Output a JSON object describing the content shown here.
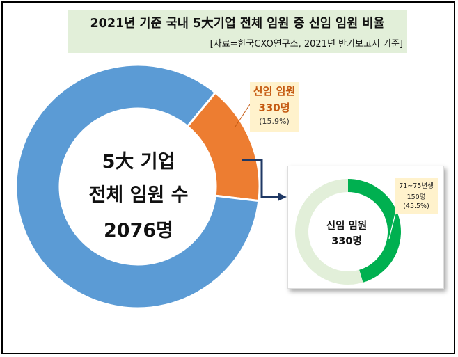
{
  "title": "2021년 기준 국내 5大기업 전체 임원 중 신임 임원 비율",
  "source": "[자료=한국CXO연구소, 2021년 반기보고서 기준]",
  "colors": {
    "main_total": "#5b9bd5",
    "main_new": "#ed7d31",
    "inset_rest": "#e2efd9",
    "inset_age": "#00b050",
    "label_box": "#fff2cc",
    "title_bg": "#e2efd9"
  },
  "chart_data": [
    {
      "type": "pie",
      "variant": "donut",
      "center_text": [
        "5大 기업",
        "전체 임원 수",
        "2076명"
      ],
      "total": 2076,
      "slices": [
        {
          "label": "신임 임원",
          "value": 330,
          "value_text": "330명",
          "percent": 15.9,
          "percent_text": "(15.9%)"
        },
        {
          "label": "",
          "value": 1746
        }
      ]
    },
    {
      "type": "pie",
      "variant": "donut",
      "center_text": [
        "신임 임원",
        "330명"
      ],
      "total": 330,
      "slices": [
        {
          "label": "71~75년생",
          "value": 150,
          "value_text": "150명",
          "percent": 45.5,
          "percent_text": "(45.5%)"
        },
        {
          "label": "",
          "value": 180
        }
      ]
    }
  ]
}
